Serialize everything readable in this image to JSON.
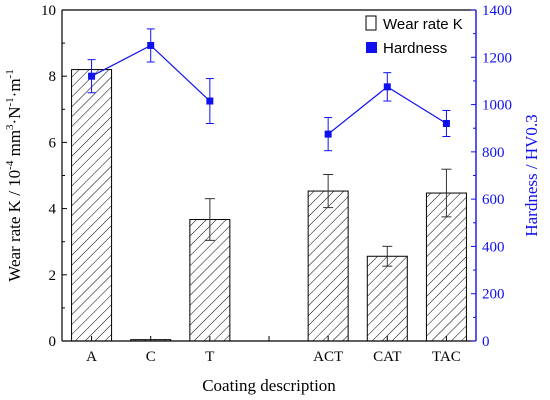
{
  "chart_data": {
    "type": "bar",
    "categories": [
      "A",
      "C",
      "T",
      "",
      "ACT",
      "CAT",
      "TAC"
    ],
    "xlabel": "Coating description",
    "ylabel_left": "Wear rate K / 10",
    "ylabel_left_exp": "-4",
    "ylabel_left_unit": " mm",
    "ylabel_left_unit_exp": "3",
    "ylabel_left_unit2": "·N",
    "ylabel_left_unit2_exp": "-1",
    "ylabel_left_unit3": "·m",
    "ylabel_left_unit3_exp": "-1",
    "ylabel_right": "Hardness / HV0.3",
    "ylim_left": [
      0,
      10
    ],
    "ylim_right": [
      0,
      1400
    ],
    "yticks_left": [
      "0",
      "2",
      "4",
      "6",
      "8",
      "10"
    ],
    "yticks_right": [
      "0",
      "200",
      "400",
      "600",
      "800",
      "1000",
      "1200",
      "1400"
    ],
    "legend_position": "top-right",
    "series": [
      {
        "name": "Wear rate K",
        "kind": "bar",
        "axis": "left",
        "pattern": "hatched",
        "values": [
          8.2,
          0.04,
          3.67,
          null,
          4.53,
          2.56,
          4.47
        ],
        "errors": [
          0.0,
          0.0,
          0.63,
          null,
          0.5,
          0.3,
          0.72
        ]
      },
      {
        "name": "Hardness",
        "kind": "line-marker",
        "axis": "right",
        "color": "#1010ee",
        "values": [
          1120,
          1250,
          1015,
          null,
          875,
          1075,
          920
        ],
        "errors": [
          70,
          70,
          95,
          null,
          70,
          60,
          55
        ]
      }
    ]
  }
}
